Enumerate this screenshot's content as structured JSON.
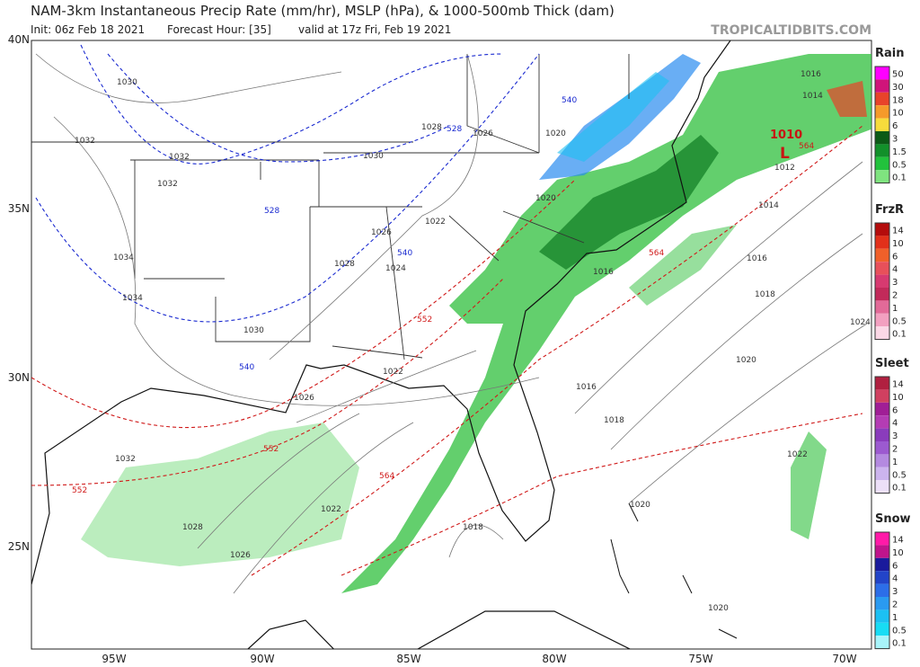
{
  "header": {
    "title": "NAM-3km Instantaneous Precip Rate (mm/hr), MSLP (hPa), & 1000-500mb Thick (dam)",
    "init": "Init: 06z Feb 18 2021",
    "forecast": "Forecast Hour: [35]",
    "valid": "valid at 17z Fri, Feb 19 2021",
    "site": "TROPICALTIDBITS.COM"
  },
  "map": {
    "lat_labels": [
      "40N",
      "35N",
      "30N",
      "25N"
    ],
    "lon_labels": [
      "95W",
      "90W",
      "85W",
      "80W",
      "75W",
      "70W"
    ],
    "low_center": {
      "pressure": "1010",
      "symbol": "L"
    },
    "isobar_labels": [
      "1030",
      "1032",
      "1032",
      "1032",
      "1034",
      "1034",
      "1030",
      "1028",
      "1026",
      "1024",
      "1022",
      "1030",
      "1028",
      "1026",
      "1020",
      "1020",
      "1016",
      "1018",
      "1016",
      "1014",
      "1012",
      "1016",
      "1018",
      "1020",
      "1022",
      "1022",
      "1026",
      "1032",
      "1028",
      "1026",
      "1022",
      "1018",
      "1020",
      "1020",
      "1016",
      "1014",
      "1024"
    ],
    "thickness_labels": [
      "528",
      "528",
      "540",
      "540",
      "540",
      "552",
      "552",
      "552",
      "564",
      "564",
      "564"
    ]
  },
  "legends": [
    {
      "title": "Rain",
      "labels": [
        50,
        30,
        18,
        10,
        6,
        3,
        1.5,
        0.5,
        0.1
      ],
      "colors": [
        "#f0f",
        "#d0147a",
        "#e8432a",
        "#f59a2a",
        "#f7dc3c",
        "#0c5a16",
        "#12902a",
        "#22c23c",
        "#7fe37f"
      ]
    },
    {
      "title": "FrzR",
      "labels": [
        14,
        10,
        6,
        4,
        3,
        2,
        1,
        0.5,
        0.1
      ],
      "colors": [
        "#b40c0c",
        "#e2301a",
        "#f0602a",
        "#e8505a",
        "#d73a70",
        "#c22a5a",
        "#e26a98",
        "#f2a0c0",
        "#fbd8e6"
      ]
    },
    {
      "title": "Sleet",
      "labels": [
        14,
        10,
        6,
        4,
        3,
        2,
        1,
        0.5,
        0.1
      ],
      "colors": [
        "#b02040",
        "#d04060",
        "#a01e96",
        "#b43cb4",
        "#8a3cbc",
        "#9c5ad0",
        "#b48ae0",
        "#ccb4ee",
        "#ece0f8"
      ]
    },
    {
      "title": "Snow",
      "labels": [
        14,
        10,
        6,
        4,
        3,
        2,
        1,
        0.5,
        0.1
      ],
      "colors": [
        "#ff1aa8",
        "#c0148c",
        "#1a1a9c",
        "#2244c8",
        "#2c6ee8",
        "#2a9af0",
        "#1cc0f2",
        "#18dcf4",
        "#a8f4fa"
      ]
    }
  ]
}
